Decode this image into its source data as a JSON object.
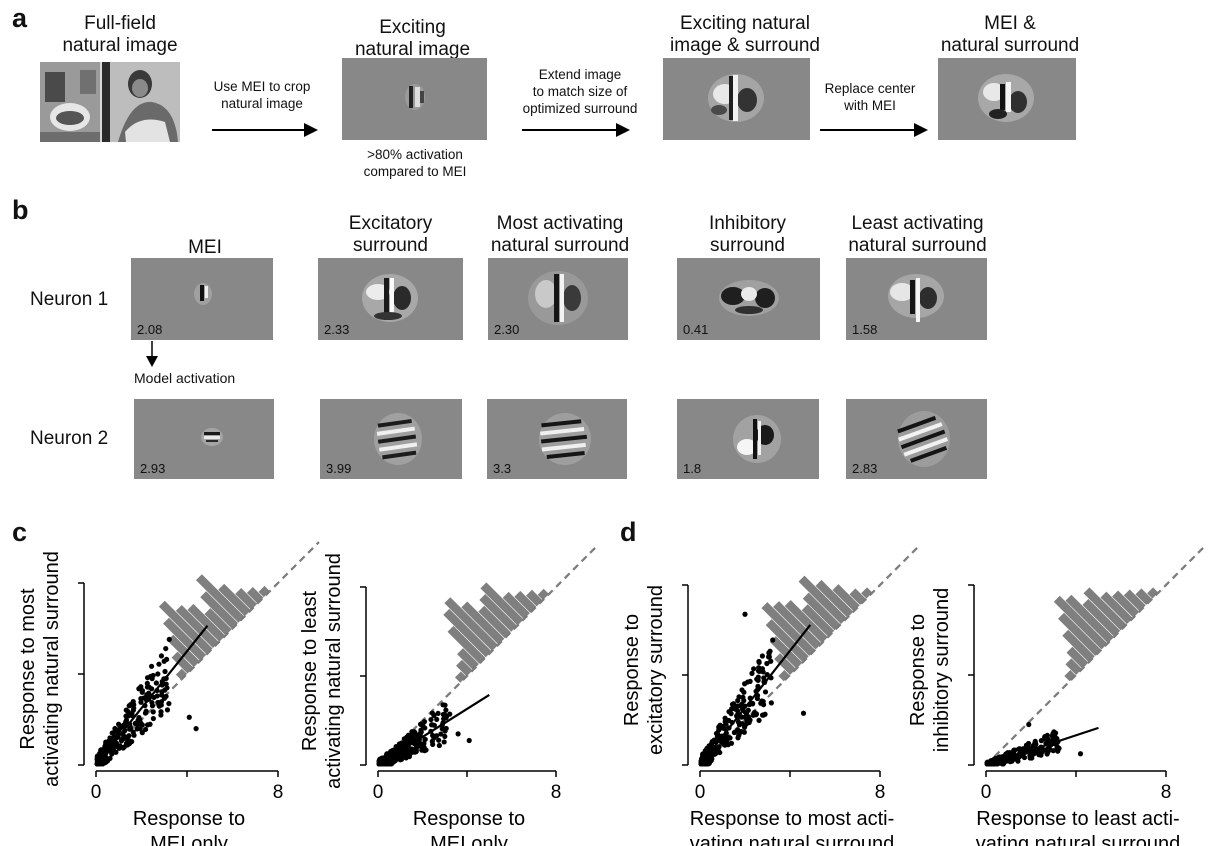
{
  "panels": {
    "a": "a",
    "b": "b",
    "c": "c",
    "d": "d"
  },
  "a": {
    "titles": [
      "Full-field\nnatural image",
      "Exciting\nnatural image",
      "Exciting natural\nimage & surround",
      "MEI &\nnatural surround"
    ],
    "arrows": [
      "Use MEI to crop\nnatural image",
      "Extend image\nto match size of\noptimized surround",
      "Replace center\nwith MEI"
    ],
    "note": ">80% activation\ncompared to MEI"
  },
  "b": {
    "col_titles": [
      "MEI",
      "Excitatory\nsurround",
      "Most activating\nnatural surround",
      "Inhibitory\nsurround",
      "Least activating\nnatural surround"
    ],
    "rows": [
      {
        "label": "Neuron 1",
        "values": [
          "2.08",
          "2.33",
          "2.30",
          "0.41",
          "1.58"
        ]
      },
      {
        "label": "Neuron 2",
        "values": [
          "2.93",
          "3.99",
          "3.3",
          "1.8",
          "2.83"
        ]
      }
    ],
    "model_activation": "Model activation"
  },
  "chart_data": [
    {
      "type": "scatter",
      "panel": "c",
      "ylabel": "Response to most\nactivating natural surround",
      "xlabel": "Response to\nMEI only",
      "xticks": [
        "0",
        "8"
      ],
      "xlim": [
        0,
        8
      ],
      "ylim": [
        0,
        8
      ],
      "slope": 1.25,
      "fit_xmax": 4.9,
      "seed": 11,
      "n": 230,
      "spread": 0.9,
      "outliers": [
        [
          4.4,
          1.6
        ],
        [
          4.1,
          2.1
        ]
      ],
      "hist": [
        1,
        3,
        5,
        7,
        9,
        7,
        6,
        4,
        6,
        8,
        5,
        3,
        2,
        1
      ]
    },
    {
      "type": "scatter",
      "panel": "c",
      "ylabel": "Response to least\nactivating natural surround",
      "xlabel": "Response to\nMEI only",
      "xticks": [
        "0",
        "8"
      ],
      "xlim": [
        0,
        8
      ],
      "ylim": [
        0,
        8
      ],
      "slope": 0.63,
      "fit_xmax": 5.0,
      "seed": 23,
      "n": 230,
      "spread": 0.55,
      "outliers": [
        [
          3.6,
          1.4
        ],
        [
          4.1,
          1.1
        ]
      ],
      "hist": [
        1,
        2,
        3,
        6,
        8,
        9,
        7,
        5,
        6,
        7,
        4,
        3,
        2,
        1
      ]
    },
    {
      "type": "scatter",
      "panel": "d",
      "ylabel": "Response to\nexcitatory surround",
      "xlabel": "Response to most acti-\nvating natural surround",
      "xticks": [
        "0",
        "8"
      ],
      "xlim": [
        0,
        8
      ],
      "ylim": [
        0,
        8
      ],
      "slope": 1.27,
      "fit_xmax": 4.9,
      "seed": 37,
      "n": 260,
      "spread": 0.9,
      "outliers": [
        [
          2.0,
          6.7
        ],
        [
          4.6,
          2.3
        ]
      ],
      "hist": [
        1,
        3,
        5,
        7,
        9,
        8,
        7,
        5,
        6,
        8,
        6,
        4,
        2,
        1
      ]
    },
    {
      "type": "scatter",
      "panel": "d",
      "ylabel": "Response to\ninhibitory surround",
      "xlabel": "Response to least acti-\nvating natural surround",
      "xticks": [
        "0",
        "8"
      ],
      "xlim": [
        0,
        8
      ],
      "ylim": [
        0,
        8
      ],
      "slope": 0.33,
      "fit_xmax": 5.0,
      "seed": 51,
      "n": 230,
      "spread": 0.3,
      "outliers": [
        [
          1.9,
          1.8
        ],
        [
          4.2,
          0.5
        ]
      ],
      "hist": [
        1,
        2,
        3,
        5,
        7,
        9,
        8,
        6,
        7,
        5,
        4,
        3,
        2,
        1
      ]
    }
  ]
}
